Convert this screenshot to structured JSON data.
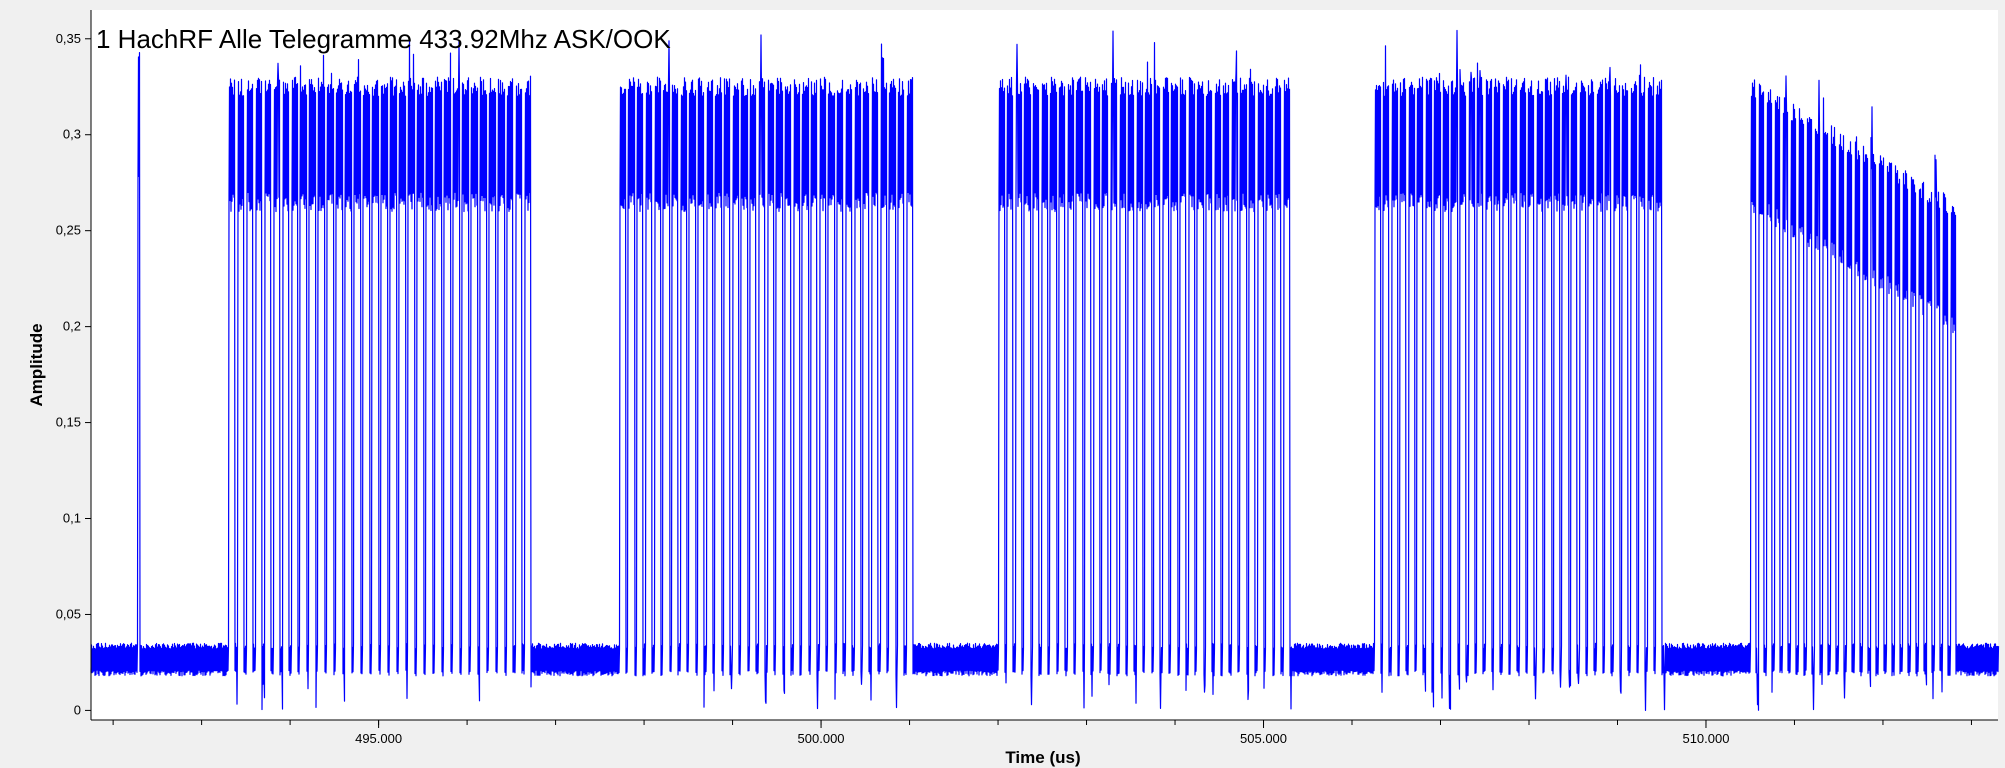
{
  "chart_data": {
    "type": "line",
    "title": "1 HachRF Alle Telegramme 433.92Mhz ASK/OOK",
    "xlabel": "Time (us)",
    "ylabel": "Amplitude",
    "xlim": [
      491.75,
      513.3
    ],
    "ylim": [
      -0.005,
      0.365
    ],
    "xticks": [
      {
        "value": 495,
        "label": "495.000"
      },
      {
        "value": 500,
        "label": "500.000"
      },
      {
        "value": 505,
        "label": "505.000"
      },
      {
        "value": 510,
        "label": "510.000"
      }
    ],
    "xminor_step": 1,
    "yticks": [
      {
        "value": 0,
        "label": "0"
      },
      {
        "value": 0.05,
        "label": "0,05"
      },
      {
        "value": 0.1,
        "label": "0,1"
      },
      {
        "value": 0.15,
        "label": "0,15"
      },
      {
        "value": 0.2,
        "label": "0,2"
      },
      {
        "value": 0.25,
        "label": "0,25"
      },
      {
        "value": 0.3,
        "label": "0,3"
      },
      {
        "value": 0.35,
        "label": "0,35"
      }
    ],
    "grid": false,
    "legend": "none",
    "series": [
      {
        "color": "#0000ff",
        "noise_floor": [
          0.018,
          0.035
        ],
        "bursts": [
          {
            "start": 492.27,
            "end": 492.3,
            "pulses": 1,
            "high": [
              0.27,
              0.345
            ],
            "decay": 0
          },
          {
            "start": 493.3,
            "end": 496.75,
            "pulses": 34,
            "high": [
              0.26,
              0.33
            ],
            "decay": 0
          },
          {
            "start": 497.72,
            "end": 501.06,
            "pulses": 34,
            "high": [
              0.26,
              0.33
            ],
            "decay": 0
          },
          {
            "start": 502.0,
            "end": 505.32,
            "pulses": 34,
            "high": [
              0.26,
              0.33
            ],
            "decay": 0
          },
          {
            "start": 506.25,
            "end": 509.53,
            "pulses": 34,
            "high": [
              0.26,
              0.33
            ],
            "decay": 0
          },
          {
            "start": 510.5,
            "end": 512.85,
            "pulses": 26,
            "high": [
              0.26,
              0.33
            ],
            "decay": 0.065
          }
        ]
      }
    ]
  }
}
